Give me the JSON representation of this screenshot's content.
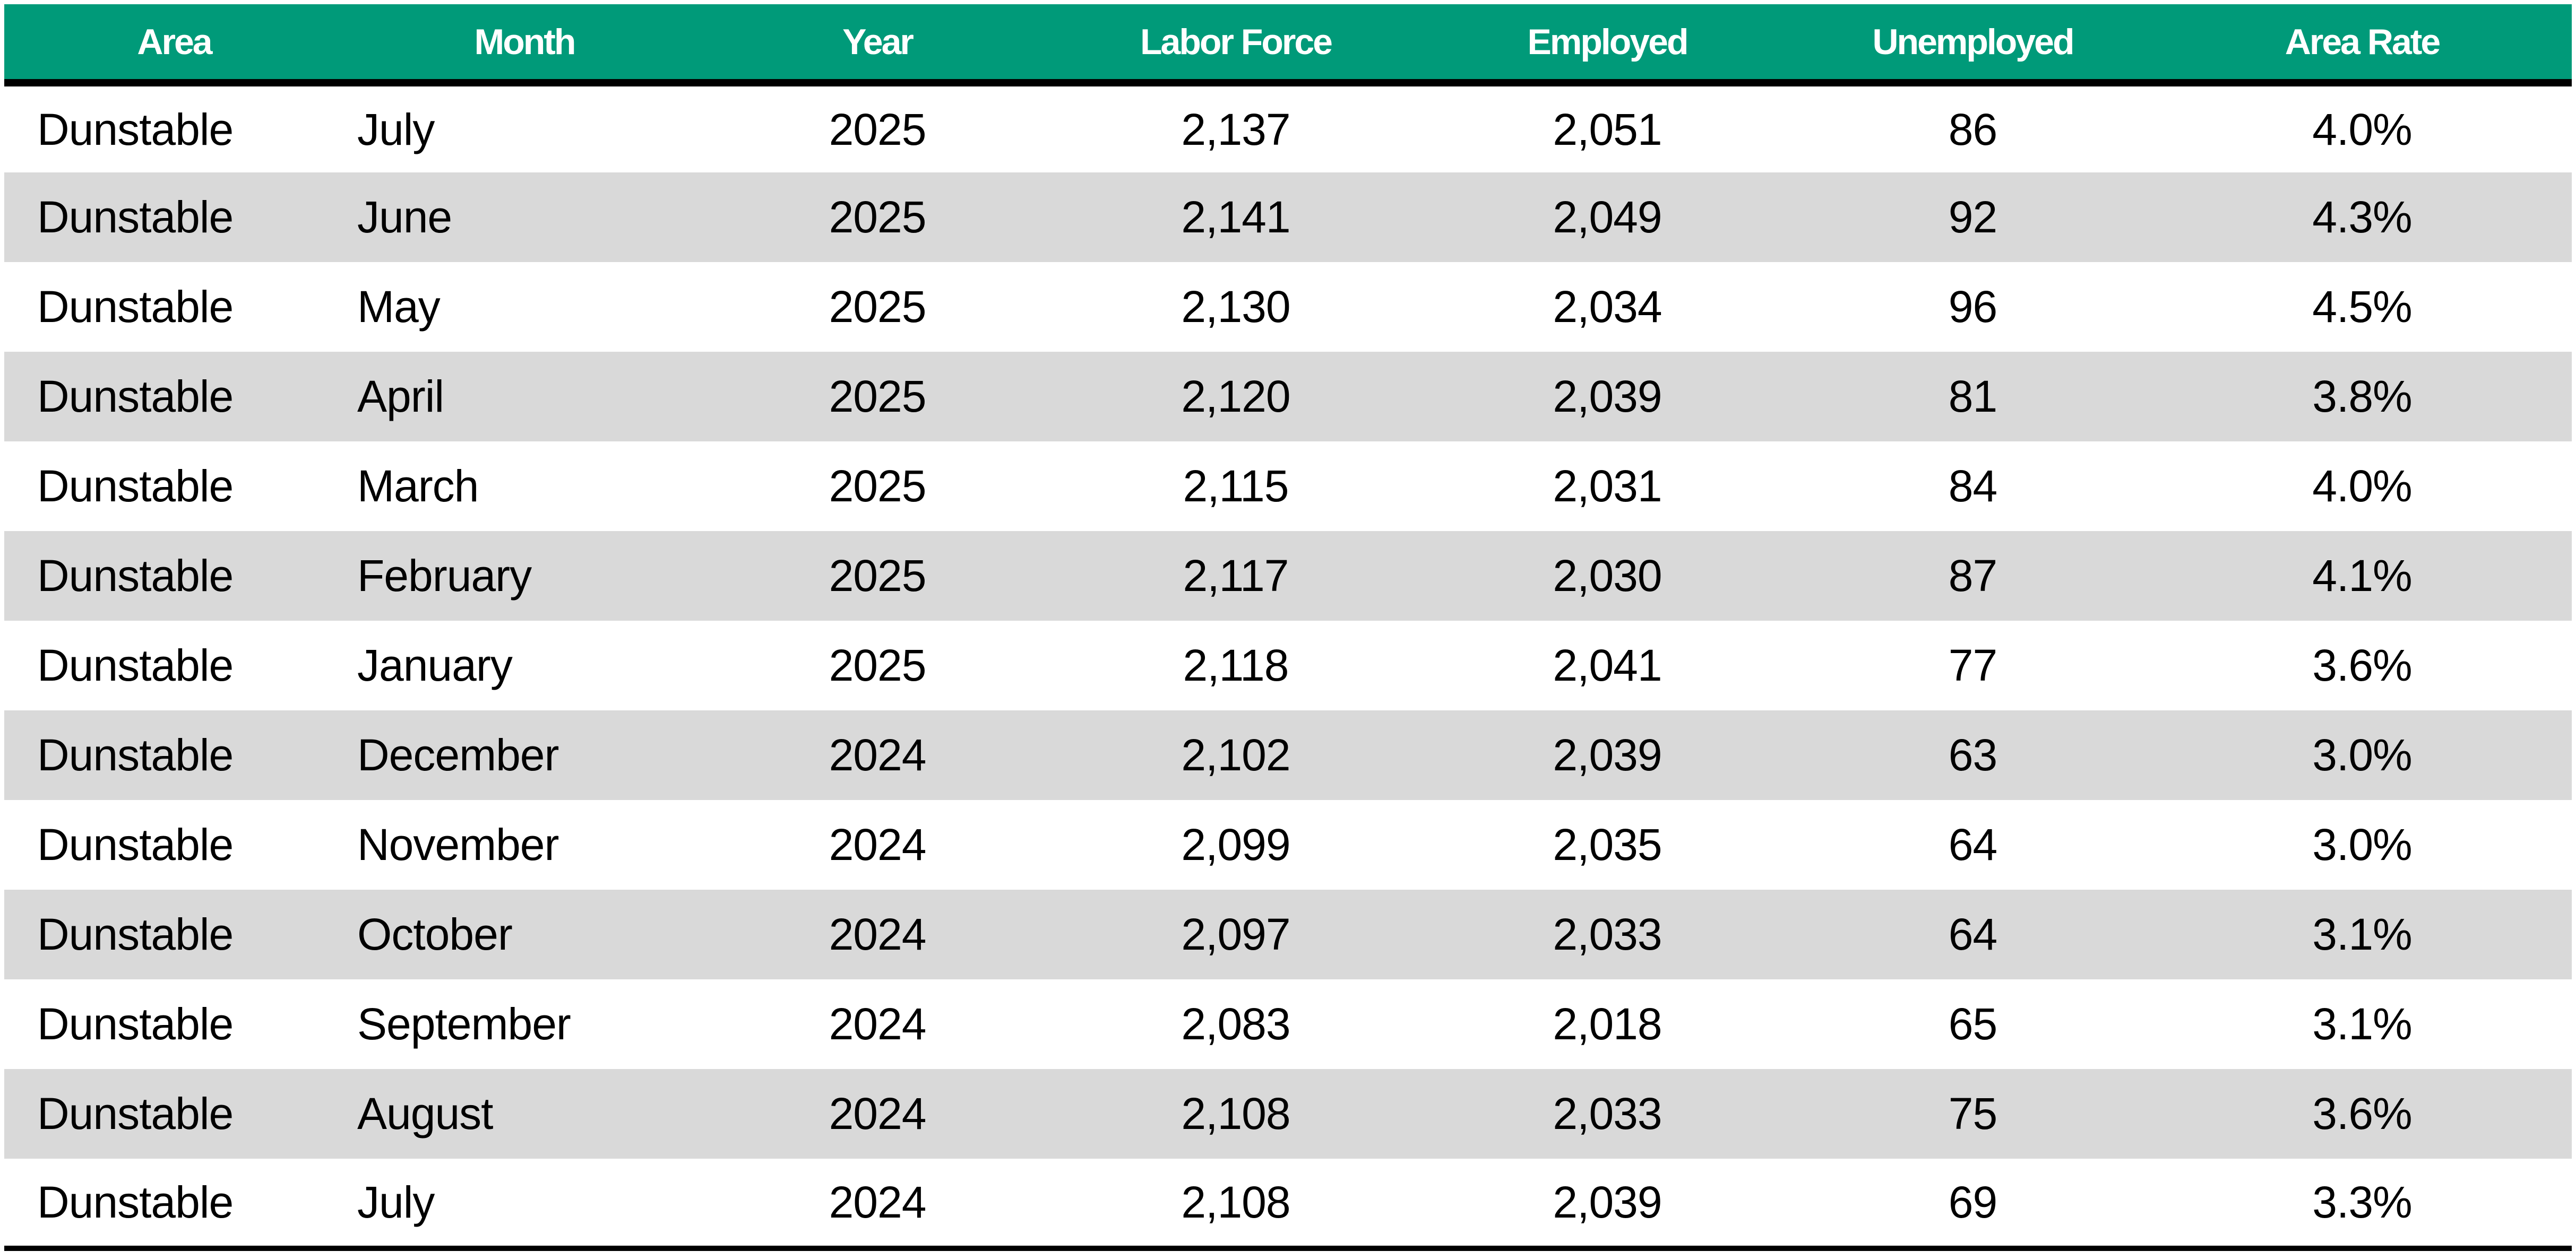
{
  "table": {
    "headers": [
      "Area",
      "Month",
      "Year",
      "Labor Force",
      "Employed",
      "Unemployed",
      "Area Rate"
    ],
    "rows": [
      [
        "Dunstable",
        "July",
        "2025",
        "2,137",
        "2,051",
        "86",
        "4.0%"
      ],
      [
        "Dunstable",
        "June",
        "2025",
        "2,141",
        "2,049",
        "92",
        "4.3%"
      ],
      [
        "Dunstable",
        "May",
        "2025",
        "2,130",
        "2,034",
        "96",
        "4.5%"
      ],
      [
        "Dunstable",
        "April",
        "2025",
        "2,120",
        "2,039",
        "81",
        "3.8%"
      ],
      [
        "Dunstable",
        "March",
        "2025",
        "2,115",
        "2,031",
        "84",
        "4.0%"
      ],
      [
        "Dunstable",
        "February",
        "2025",
        "2,117",
        "2,030",
        "87",
        "4.1%"
      ],
      [
        "Dunstable",
        "January",
        "2025",
        "2,118",
        "2,041",
        "77",
        "3.6%"
      ],
      [
        "Dunstable",
        "December",
        "2024",
        "2,102",
        "2,039",
        "63",
        "3.0%"
      ],
      [
        "Dunstable",
        "November",
        "2024",
        "2,099",
        "2,035",
        "64",
        "3.0%"
      ],
      [
        "Dunstable",
        "October",
        "2024",
        "2,097",
        "2,033",
        "64",
        "3.1%"
      ],
      [
        "Dunstable",
        "September",
        "2024",
        "2,083",
        "2,018",
        "65",
        "3.1%"
      ],
      [
        "Dunstable",
        "August",
        "2024",
        "2,108",
        "2,033",
        "75",
        "3.6%"
      ],
      [
        "Dunstable",
        "July",
        "2024",
        "2,108",
        "2,039",
        "69",
        "3.3%"
      ]
    ]
  },
  "colors": {
    "header_bg": "#009a79",
    "header_text": "#ffffff",
    "stripe_bg": "#d9d9d9",
    "rule": "#000000"
  }
}
